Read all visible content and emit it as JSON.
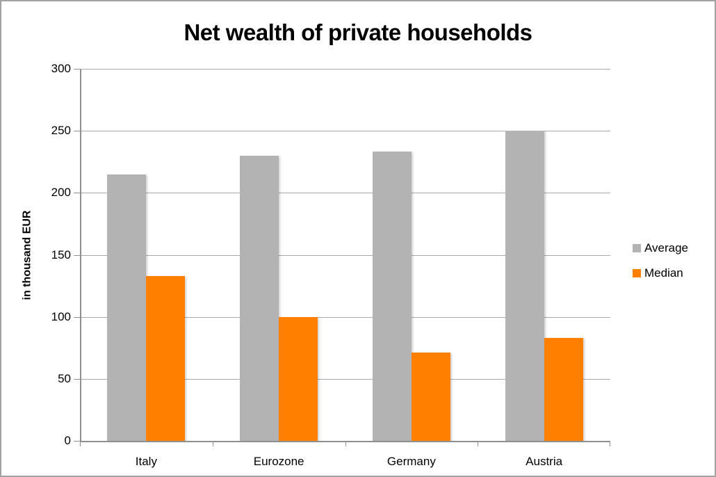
{
  "window": {
    "background": "#ffffff",
    "border_color": "#a2a2a2"
  },
  "chart_data": {
    "type": "bar",
    "title": "Net wealth of private households",
    "ylabel": "in thousand EUR",
    "xlabel": "",
    "categories": [
      "Italy",
      "Eurozone",
      "Germany",
      "Austria"
    ],
    "series": [
      {
        "name": "Average",
        "color": "#b3b3b3",
        "values": [
          215,
          230,
          233,
          250
        ]
      },
      {
        "name": "Median",
        "color": "#ff7f00",
        "values": [
          133,
          100,
          71,
          83
        ]
      }
    ],
    "ylim": [
      0,
      300
    ],
    "yticks": [
      0,
      50,
      100,
      150,
      200,
      250,
      300
    ],
    "grid": true,
    "legend_position": "right",
    "axis_color": "#8f8f8f",
    "gridline_color": "#a8a8a8",
    "text_color": "#000000"
  }
}
